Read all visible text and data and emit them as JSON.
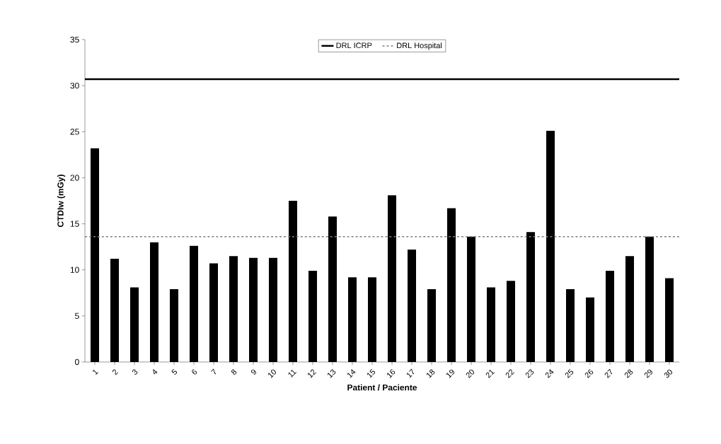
{
  "chart_data": {
    "type": "bar",
    "xlabel": "Patient / Paciente",
    "ylabel": "CTDIw (mGy)",
    "categories": [
      "1",
      "2",
      "3",
      "4",
      "5",
      "6",
      "7",
      "8",
      "9",
      "10",
      "11",
      "12",
      "13",
      "14",
      "15",
      "16",
      "17",
      "18",
      "19",
      "20",
      "21",
      "22",
      "23",
      "24",
      "25",
      "26",
      "27",
      "28",
      "29",
      "30"
    ],
    "values": [
      23.2,
      11.2,
      8.1,
      13.0,
      7.9,
      12.6,
      10.7,
      11.5,
      11.3,
      11.3,
      17.5,
      9.9,
      15.8,
      9.2,
      9.2,
      18.1,
      12.2,
      7.9,
      16.7,
      13.6,
      8.1,
      8.8,
      14.1,
      25.1,
      7.9,
      7.0,
      9.9,
      11.5,
      13.6,
      9.1
    ],
    "color": "#000000",
    "ylim": [
      0,
      35
    ],
    "yticks": [
      0,
      5,
      10,
      15,
      20,
      25,
      30,
      35
    ],
    "ref_lines": [
      {
        "axis": "y",
        "value": 30.7,
        "label": "DRL ICRP",
        "color": "#000000",
        "line_style": "solid"
      },
      {
        "axis": "y",
        "value": 13.6,
        "label": "DRL Hospital",
        "color": "#808080",
        "line_style": "dashed"
      }
    ],
    "legend": "top"
  }
}
